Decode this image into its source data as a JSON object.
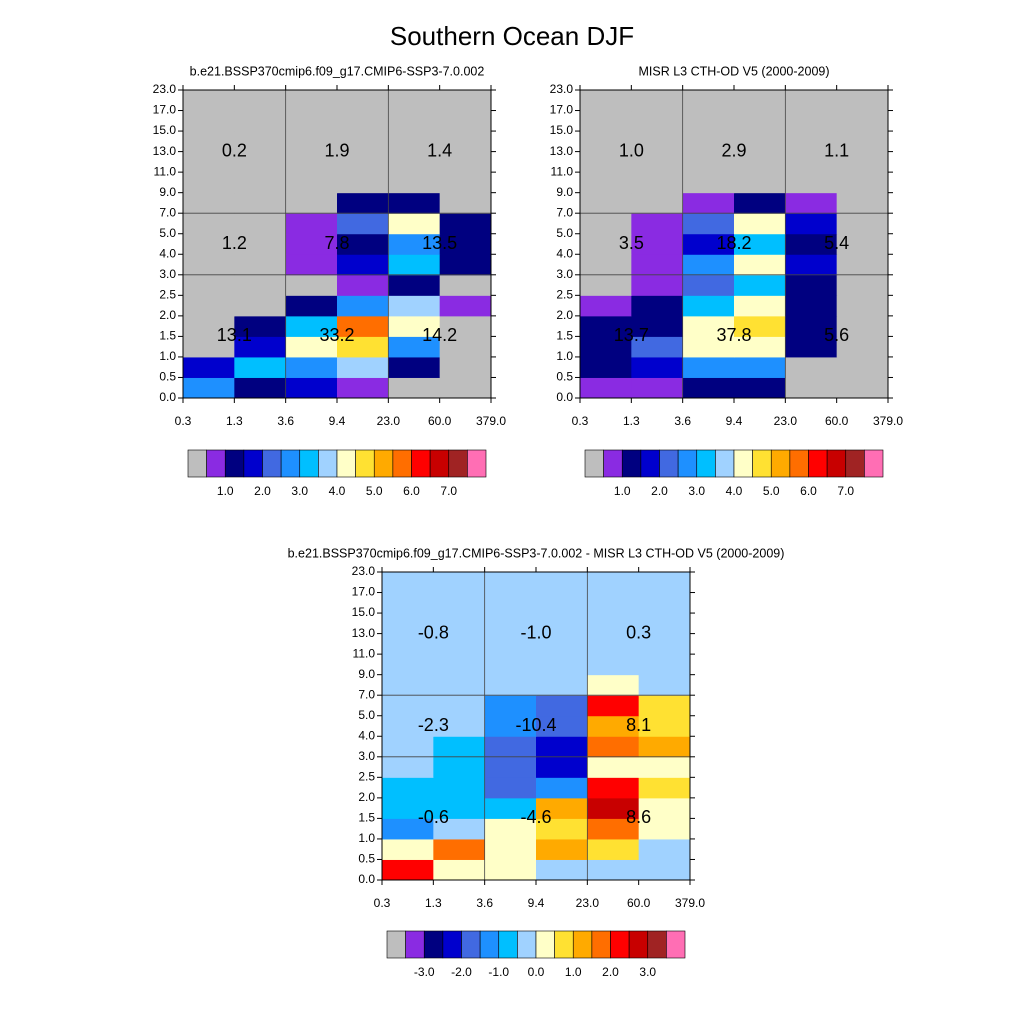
{
  "title": "Southern Ocean DJF",
  "chart_data": [
    {
      "type": "heatmap",
      "title": "b.e21.BSSP370cmip6.f09_g17.CMIP6-SSP3-7.0.002",
      "x_edges": [
        "0.3",
        "1.3",
        "3.6",
        "9.4",
        "23.0",
        "60.0",
        "379.0"
      ],
      "y_edges": [
        "0.0",
        "0.5",
        "1.0",
        "1.5",
        "2.0",
        "2.5",
        "3.0",
        "4.0",
        "5.0",
        "7.0",
        "9.0",
        "11.0",
        "13.0",
        "15.0",
        "17.0",
        "23.0"
      ],
      "z": [
        [
          2.75,
          1.25,
          1.75,
          0.75,
          0.2,
          0.2
        ],
        [
          1.75,
          3.25,
          2.75,
          3.75,
          1.25,
          0.2
        ],
        [
          0.2,
          1.75,
          4.25,
          4.75,
          2.75,
          0.2
        ],
        [
          0.2,
          1.25,
          3.25,
          5.75,
          4.25,
          0.2
        ],
        [
          0.2,
          0.2,
          1.25,
          2.75,
          3.75,
          0.75
        ],
        [
          0.2,
          0.2,
          0.2,
          0.75,
          1.25,
          0.2
        ],
        [
          0.2,
          0.2,
          0.75,
          1.75,
          3.25,
          1.25
        ],
        [
          0.2,
          0.2,
          0.75,
          1.25,
          2.75,
          1.25
        ],
        [
          0.2,
          0.2,
          0.75,
          2.25,
          4.25,
          1.25
        ],
        [
          0.2,
          0.2,
          0.2,
          1.25,
          1.25,
          0.2
        ],
        [
          0.2,
          0.2,
          0.2,
          0.2,
          0.2,
          0.2
        ],
        [
          0.2,
          0.2,
          0.2,
          0.2,
          0.2,
          0.2
        ],
        [
          0.2,
          0.2,
          0.2,
          0.2,
          0.2,
          0.2
        ],
        [
          0.2,
          0.2,
          0.2,
          0.2,
          0.2,
          0.2
        ],
        [
          0.2,
          0.2,
          0.2,
          0.2,
          0.2,
          0.2
        ]
      ],
      "region_values": [
        [
          0.2,
          1.9,
          1.4
        ],
        [
          1.2,
          7.8,
          13.5
        ],
        [
          13.1,
          33.2,
          14.2
        ]
      ],
      "region_value_labels": [
        [
          "0.2",
          "1.9",
          "1.4"
        ],
        [
          "1.2",
          "7.8",
          "13.5"
        ],
        [
          "13.1",
          "33.2",
          "14.2"
        ]
      ],
      "colors": [
        "#bebebe",
        "#8a2be2",
        "#000080",
        "#0000cd",
        "#4169e1",
        "#1e90ff",
        "#00bfff",
        "#a0d2ff",
        "#ffffc8",
        "#ffe132",
        "#ffaa00",
        "#ff6e00",
        "#ff0000",
        "#c80000",
        "#a02323",
        "#ff6eb4"
      ],
      "clim": [
        0,
        8
      ],
      "cticks": [
        {
          "value": 1,
          "label": "1.0"
        },
        {
          "value": 2,
          "label": "2.0"
        },
        {
          "value": 3,
          "label": "3.0"
        },
        {
          "value": 4,
          "label": "4.0"
        },
        {
          "value": 5,
          "label": "5.0"
        },
        {
          "value": 6,
          "label": "6.0"
        },
        {
          "value": 7,
          "label": "7.0"
        }
      ]
    },
    {
      "type": "heatmap",
      "title": "MISR L3 CTH-OD V5 (2000-2009)",
      "x_edges": [
        "0.3",
        "1.3",
        "3.6",
        "9.4",
        "23.0",
        "60.0",
        "379.0"
      ],
      "y_edges": [
        "0.0",
        "0.5",
        "1.0",
        "1.5",
        "2.0",
        "2.5",
        "3.0",
        "4.0",
        "5.0",
        "7.0",
        "9.0",
        "11.0",
        "13.0",
        "15.0",
        "17.0",
        "23.0"
      ],
      "z": [
        [
          0.75,
          0.75,
          1.25,
          1.25,
          0.2,
          0.2
        ],
        [
          1.25,
          1.75,
          2.75,
          2.75,
          0.2,
          0.2
        ],
        [
          1.25,
          2.25,
          4.25,
          4.25,
          1.25,
          0.2
        ],
        [
          1.25,
          1.25,
          4.25,
          4.75,
          1.25,
          0.2
        ],
        [
          0.75,
          1.25,
          3.25,
          4.25,
          1.25,
          0.2
        ],
        [
          0.2,
          0.75,
          2.25,
          3.25,
          1.25,
          0.2
        ],
        [
          0.2,
          0.75,
          2.75,
          4.25,
          1.75,
          0.2
        ],
        [
          0.2,
          0.75,
          1.75,
          3.25,
          1.25,
          0.2
        ],
        [
          0.2,
          0.75,
          2.25,
          4.25,
          1.75,
          0.2
        ],
        [
          0.2,
          0.2,
          0.75,
          1.25,
          0.75,
          0.2
        ],
        [
          0.2,
          0.2,
          0.2,
          0.2,
          0.2,
          0.2
        ],
        [
          0.2,
          0.2,
          0.2,
          0.2,
          0.2,
          0.2
        ],
        [
          0.2,
          0.2,
          0.2,
          0.2,
          0.2,
          0.2
        ],
        [
          0.2,
          0.2,
          0.2,
          0.2,
          0.2,
          0.2
        ],
        [
          0.2,
          0.2,
          0.2,
          0.2,
          0.2,
          0.2
        ]
      ],
      "region_values": [
        [
          1.0,
          2.9,
          1.1
        ],
        [
          3.5,
          18.2,
          5.4
        ],
        [
          13.7,
          37.8,
          5.6
        ]
      ],
      "region_value_labels": [
        [
          "1.0",
          "2.9",
          "1.1"
        ],
        [
          "3.5",
          "18.2",
          "5.4"
        ],
        [
          "13.7",
          "37.8",
          "5.6"
        ]
      ],
      "colors": [
        "#bebebe",
        "#8a2be2",
        "#000080",
        "#0000cd",
        "#4169e1",
        "#1e90ff",
        "#00bfff",
        "#a0d2ff",
        "#ffffc8",
        "#ffe132",
        "#ffaa00",
        "#ff6e00",
        "#ff0000",
        "#c80000",
        "#a02323",
        "#ff6eb4"
      ],
      "clim": [
        0,
        8
      ],
      "cticks": [
        {
          "value": 1,
          "label": "1.0"
        },
        {
          "value": 2,
          "label": "2.0"
        },
        {
          "value": 3,
          "label": "3.0"
        },
        {
          "value": 4,
          "label": "4.0"
        },
        {
          "value": 5,
          "label": "5.0"
        },
        {
          "value": 6,
          "label": "6.0"
        },
        {
          "value": 7,
          "label": "7.0"
        }
      ]
    },
    {
      "type": "heatmap",
      "title": "b.e21.BSSP370cmip6.f09_g17.CMIP6-SSP3-7.0.002 - MISR L3 CTH-OD V5 (2000-2009)",
      "x_edges": [
        "0.3",
        "1.3",
        "3.6",
        "9.4",
        "23.0",
        "60.0",
        "379.0"
      ],
      "y_edges": [
        "0.0",
        "0.5",
        "1.0",
        "1.5",
        "2.0",
        "2.5",
        "3.0",
        "4.0",
        "5.0",
        "7.0",
        "9.0",
        "11.0",
        "13.0",
        "15.0",
        "17.0",
        "23.0"
      ],
      "z": [
        [
          2.25,
          0.25,
          0.25,
          -0.25,
          -0.25,
          -0.25
        ],
        [
          0.25,
          1.75,
          0.25,
          1.25,
          0.75,
          -0.25
        ],
        [
          -1.25,
          -0.25,
          0.25,
          0.75,
          1.75,
          0.25
        ],
        [
          -0.75,
          -0.75,
          -0.75,
          1.25,
          2.75,
          0.25
        ],
        [
          -0.75,
          -0.75,
          -1.75,
          -1.25,
          2.25,
          0.75
        ],
        [
          -0.25,
          -0.75,
          -1.75,
          -2.25,
          0.25,
          0.25
        ],
        [
          -0.25,
          -0.75,
          -1.75,
          -2.25,
          1.75,
          1.25
        ],
        [
          -0.25,
          -0.25,
          -1.25,
          -1.75,
          1.25,
          0.75
        ],
        [
          -0.25,
          -0.25,
          -1.25,
          -1.75,
          2.25,
          0.75
        ],
        [
          -0.25,
          -0.25,
          -0.25,
          -0.25,
          0.25,
          -0.25
        ],
        [
          -0.25,
          -0.25,
          -0.25,
          -0.25,
          -0.25,
          -0.25
        ],
        [
          -0.25,
          -0.25,
          -0.25,
          -0.25,
          -0.25,
          -0.25
        ],
        [
          -0.25,
          -0.25,
          -0.25,
          -0.25,
          -0.25,
          -0.25
        ],
        [
          -0.25,
          -0.25,
          -0.25,
          -0.25,
          -0.25,
          -0.25
        ],
        [
          -0.25,
          -0.25,
          -0.25,
          -0.25,
          -0.25,
          -0.25
        ]
      ],
      "region_values": [
        [
          -0.8,
          -1.0,
          0.3
        ],
        [
          -2.3,
          -10.4,
          8.1
        ],
        [
          -0.6,
          -4.6,
          8.6
        ]
      ],
      "region_value_labels": [
        [
          "-0.8",
          "-1.0",
          "0.3"
        ],
        [
          "-2.3",
          "-10.4",
          "8.1"
        ],
        [
          "-0.6",
          "-4.6",
          "8.6"
        ]
      ],
      "colors": [
        "#bebebe",
        "#8a2be2",
        "#000080",
        "#0000cd",
        "#4169e1",
        "#1e90ff",
        "#00bfff",
        "#a0d2ff",
        "#ffffc8",
        "#ffe132",
        "#ffaa00",
        "#ff6e00",
        "#ff0000",
        "#c80000",
        "#a02323",
        "#ff6eb4"
      ],
      "clim": [
        -4,
        4
      ],
      "cticks": [
        {
          "value": -3,
          "label": "-3.0"
        },
        {
          "value": -2,
          "label": "-2.0"
        },
        {
          "value": -1,
          "label": "-1.0"
        },
        {
          "value": 0,
          "label": "0.0"
        },
        {
          "value": 1,
          "label": "1.0"
        },
        {
          "value": 2,
          "label": "2.0"
        },
        {
          "value": 3,
          "label": "3.0"
        }
      ]
    }
  ]
}
